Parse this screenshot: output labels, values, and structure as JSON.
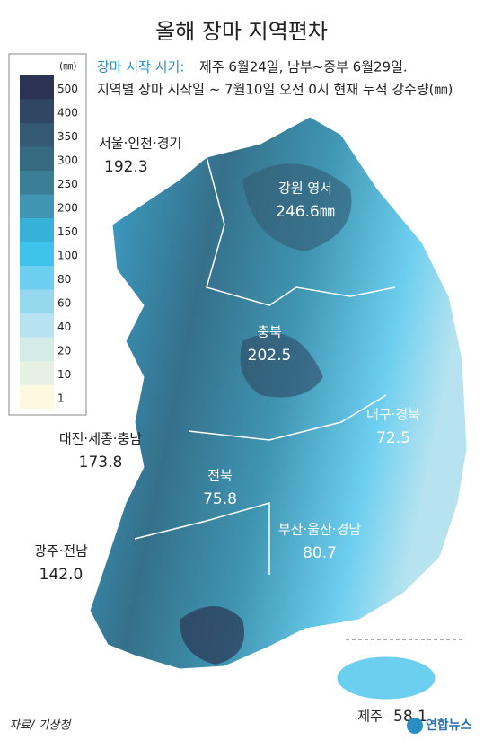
{
  "header": {
    "title": "올해 장마 지역편차",
    "subtitle_label": "장마 시작 시기:",
    "subtitle_text": "제주 6월24일, 남부~중부 6월29일.",
    "subtitle_line2": "지역별 장마 시작일 ~ 7월10일 오전 0시 현재 누적 강수량(㎜)"
  },
  "legend": {
    "unit": "(㎜)",
    "levels": [
      {
        "label": "500",
        "color": "#2b3452"
      },
      {
        "label": "400",
        "color": "#2f4763"
      },
      {
        "label": "350",
        "color": "#335a72"
      },
      {
        "label": "300",
        "color": "#366a80"
      },
      {
        "label": "250",
        "color": "#3b7f97"
      },
      {
        "label": "200",
        "color": "#3f95b2"
      },
      {
        "label": "150",
        "color": "#36b2d9"
      },
      {
        "label": "100",
        "color": "#3fc2ec"
      },
      {
        "label": "80",
        "color": "#6dcff0"
      },
      {
        "label": "60",
        "color": "#96d9ef"
      },
      {
        "label": "40",
        "color": "#b6e3ef"
      },
      {
        "label": "20",
        "color": "#d3ece8"
      },
      {
        "label": "10",
        "color": "#e5f1e3"
      },
      {
        "label": "1",
        "color": "#fdf8e0"
      }
    ]
  },
  "regions": [
    {
      "name": "서울·인천·경기",
      "value": "192.3"
    },
    {
      "name": "강원 영서",
      "value": "246.6㎜"
    },
    {
      "name": "충북",
      "value": "202.5"
    },
    {
      "name": "대구·경북",
      "value": "72.5"
    },
    {
      "name": "대전·세종·충남",
      "value": "173.8"
    },
    {
      "name": "전북",
      "value": "75.8"
    },
    {
      "name": "부산·울산·경남",
      "value": "80.7"
    },
    {
      "name": "광주·전남",
      "value": "142.0"
    },
    {
      "name": "제주",
      "value": "58.1"
    }
  ],
  "footer": {
    "source": "자료/ 기상청",
    "logo": "연합뉴스"
  }
}
